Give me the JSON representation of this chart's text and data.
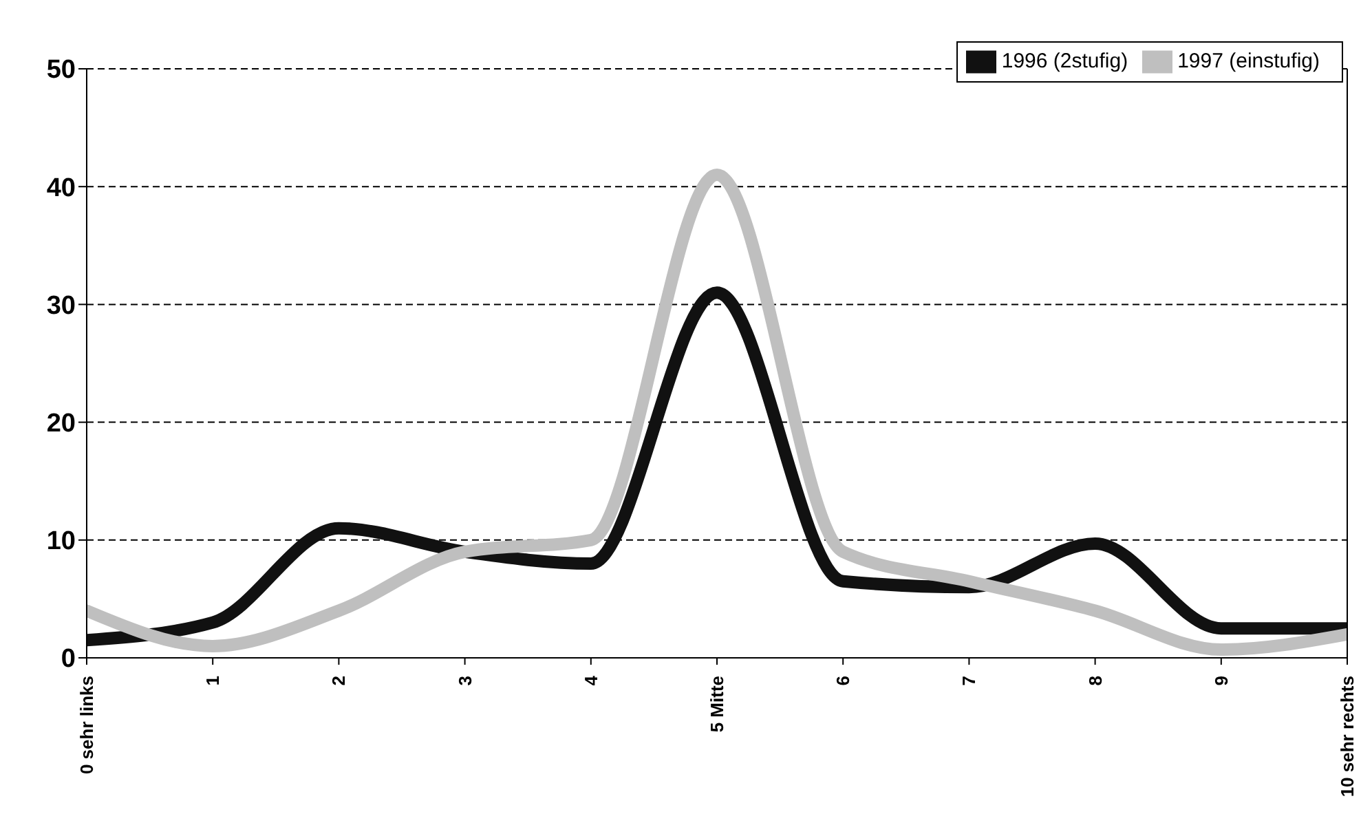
{
  "chart_data": {
    "type": "line",
    "categories": [
      "0 sehr links",
      "1",
      "2",
      "3",
      "4",
      "5 Mitte",
      "6",
      "7",
      "8",
      "9",
      "10 sehr rechts"
    ],
    "series": [
      {
        "name": "1996 (2stufig)",
        "color": "#111111",
        "values": [
          1.5,
          3,
          11,
          9,
          8,
          31,
          6.5,
          6,
          9.7,
          2.5,
          2.5
        ]
      },
      {
        "name": "1997 (einstufig)",
        "color": "#bfbfbf",
        "values": [
          4,
          1,
          4,
          9,
          10,
          41,
          9,
          6.5,
          4,
          0.7,
          2
        ]
      }
    ],
    "ylim": [
      0,
      50
    ],
    "yticks": [
      0,
      10,
      20,
      30,
      40,
      50
    ],
    "grid": "y",
    "legend": "top right",
    "marker": "none",
    "line_style": "solid"
  }
}
